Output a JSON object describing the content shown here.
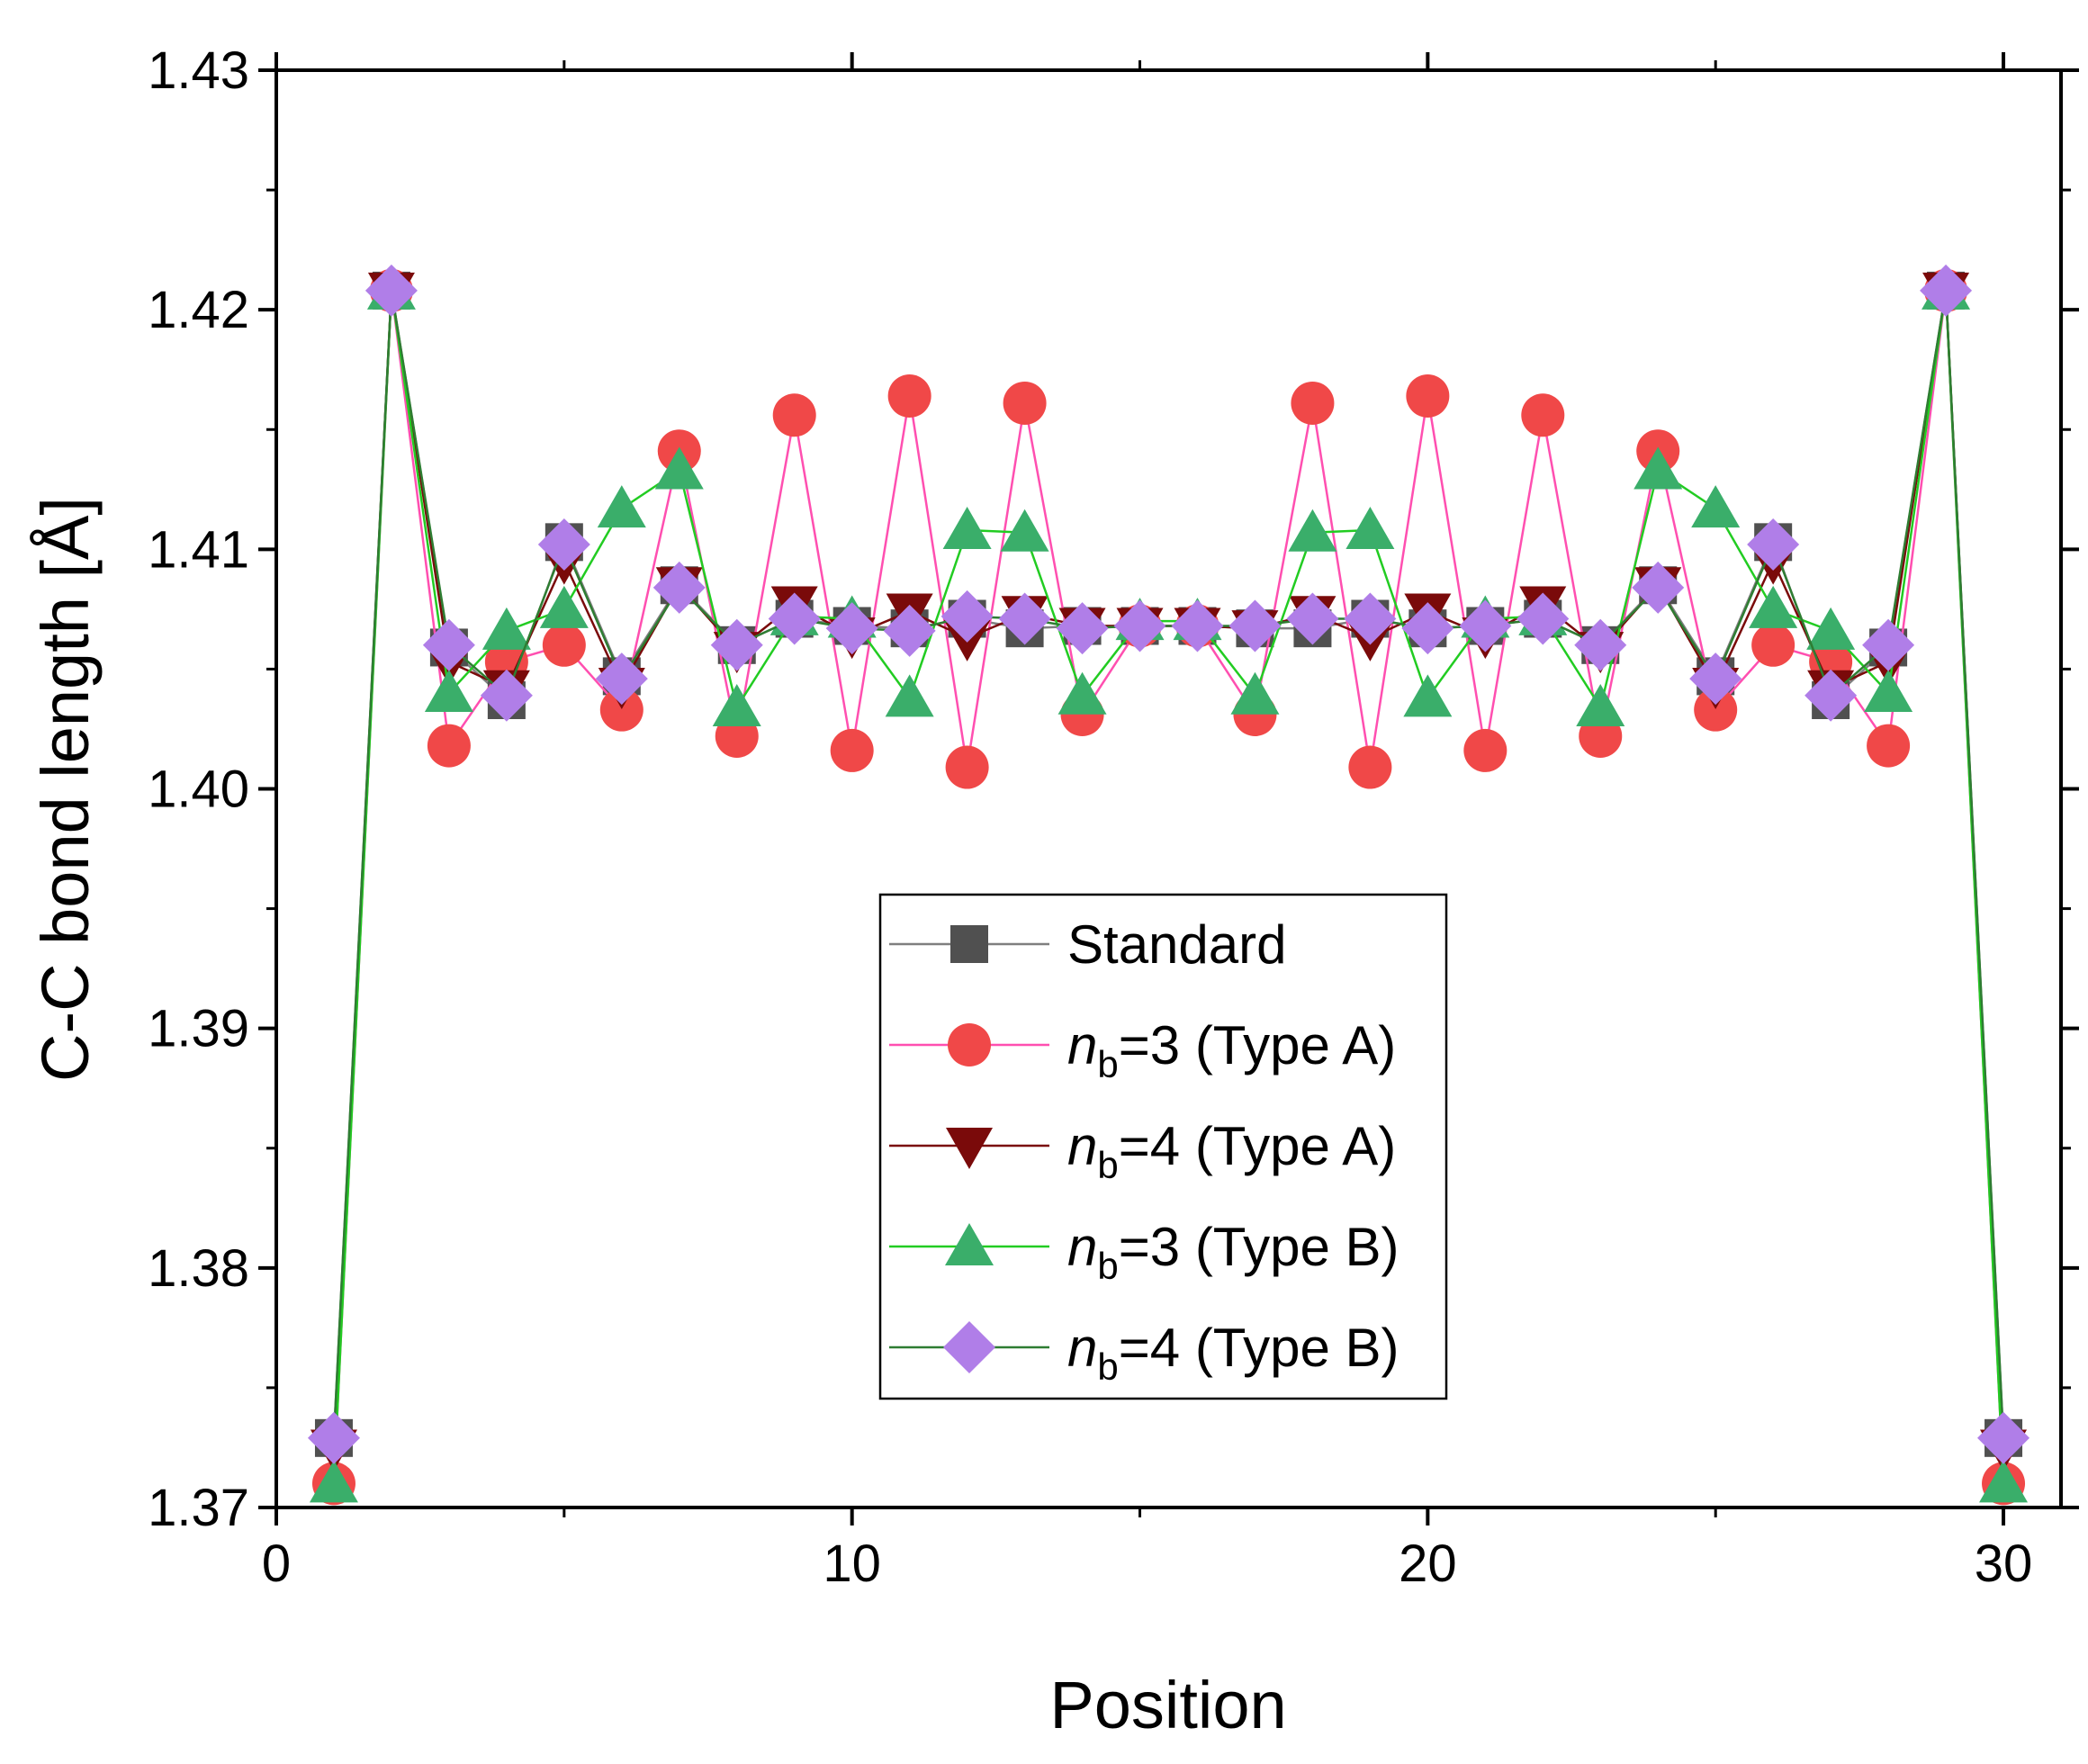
{
  "chart_data": {
    "type": "line",
    "title": "",
    "xlabel": "Position",
    "ylabel": "C-C bond length [Å]",
    "xlim": [
      0,
      31
    ],
    "ylim": [
      1.37,
      1.43
    ],
    "x_ticks": [
      0,
      10,
      20,
      30
    ],
    "x_tick_labels": [
      "0",
      "10",
      "20",
      "30"
    ],
    "y_ticks": [
      1.37,
      1.38,
      1.39,
      1.4,
      1.41,
      1.42,
      1.43
    ],
    "y_tick_labels": [
      "1.37",
      "1.38",
      "1.39",
      "1.40",
      "1.41",
      "1.42",
      "1.43"
    ],
    "legend_position": "center",
    "x": [
      1,
      2,
      3,
      4,
      5,
      6,
      7,
      8,
      9,
      10,
      11,
      12,
      13,
      14,
      15,
      16,
      17,
      18,
      19,
      20,
      21,
      22,
      23,
      24,
      25,
      26,
      27,
      28,
      29,
      30
    ],
    "series": [
      {
        "name": "Standard",
        "name_parts": {
          "prefix": "Standard",
          "sub": "",
          "suffix": ""
        },
        "marker": "square",
        "marker_color": "#505050",
        "line_color": "#7f7f7f",
        "values": [
          1.3729,
          1.4208,
          1.4059,
          1.4037,
          1.4103,
          1.4047,
          1.4085,
          1.406,
          1.4071,
          1.4068,
          1.4067,
          1.4071,
          1.4067,
          1.4068,
          1.4068,
          1.4068,
          1.4067,
          1.4067,
          1.4071,
          1.4067,
          1.4068,
          1.4071,
          1.406,
          1.4085,
          1.4047,
          1.4103,
          1.4037,
          1.4059,
          1.4208,
          1.3729
        ]
      },
      {
        "name": "nb=3 (Type A)",
        "name_parts": {
          "prefix": "n",
          "sub": "b",
          "suffix": "=3 (Type A)"
        },
        "marker": "circle",
        "marker_color": "#f04848",
        "line_color": "#ff4fb0",
        "values": [
          1.371,
          1.4208,
          1.4018,
          1.4053,
          1.406,
          1.4033,
          1.4141,
          1.4022,
          1.4156,
          1.4016,
          1.4164,
          1.4009,
          1.4161,
          1.4031,
          1.4068,
          1.4068,
          1.4031,
          1.4161,
          1.4009,
          1.4164,
          1.4016,
          1.4156,
          1.4022,
          1.4141,
          1.4033,
          1.406,
          1.4053,
          1.4018,
          1.4208,
          1.371
        ]
      },
      {
        "name": "nb=4 (Type A)",
        "name_parts": {
          "prefix": "n",
          "sub": "b",
          "suffix": "=4 (Type A)"
        },
        "marker": "triangle-down",
        "marker_color": "#7a0a0a",
        "line_color": "#7a0a0a",
        "values": [
          1.3725,
          1.4208,
          1.4053,
          1.4042,
          1.4095,
          1.4043,
          1.4085,
          1.4058,
          1.4077,
          1.4064,
          1.4074,
          1.4063,
          1.4073,
          1.4068,
          1.4068,
          1.4068,
          1.4067,
          1.4073,
          1.4063,
          1.4074,
          1.4064,
          1.4077,
          1.4058,
          1.4085,
          1.4043,
          1.4095,
          1.4042,
          1.4053,
          1.4208,
          1.3725
        ]
      },
      {
        "name": "nb=3 (Type B)",
        "name_parts": {
          "prefix": "n",
          "sub": "b",
          "suffix": "=3 (Type B)"
        },
        "marker": "triangle-up",
        "marker_color": "#3aae6a",
        "line_color": "#22cc22",
        "values": [
          1.371,
          1.4208,
          1.404,
          1.4066,
          1.4075,
          1.4117,
          1.4133,
          1.4034,
          1.4072,
          1.4071,
          1.4038,
          1.4108,
          1.4107,
          1.4039,
          1.407,
          1.407,
          1.4039,
          1.4107,
          1.4108,
          1.4038,
          1.4071,
          1.4072,
          1.4034,
          1.4133,
          1.4117,
          1.4075,
          1.4066,
          1.404,
          1.4208,
          1.371
        ]
      },
      {
        "name": "nb=4 (Type B)",
        "name_parts": {
          "prefix": "n",
          "sub": "b",
          "suffix": "=4 (Type B)"
        },
        "marker": "diamond",
        "marker_color": "#b07ee8",
        "line_color": "#2e7d32",
        "values": [
          1.3729,
          1.4208,
          1.406,
          1.4039,
          1.4102,
          1.4046,
          1.4084,
          1.406,
          1.4071,
          1.4067,
          1.4066,
          1.4072,
          1.4071,
          1.4067,
          1.4068,
          1.4068,
          1.4068,
          1.4071,
          1.4071,
          1.4067,
          1.4068,
          1.4071,
          1.406,
          1.4084,
          1.4046,
          1.4102,
          1.4039,
          1.406,
          1.4208,
          1.3729
        ]
      }
    ]
  }
}
